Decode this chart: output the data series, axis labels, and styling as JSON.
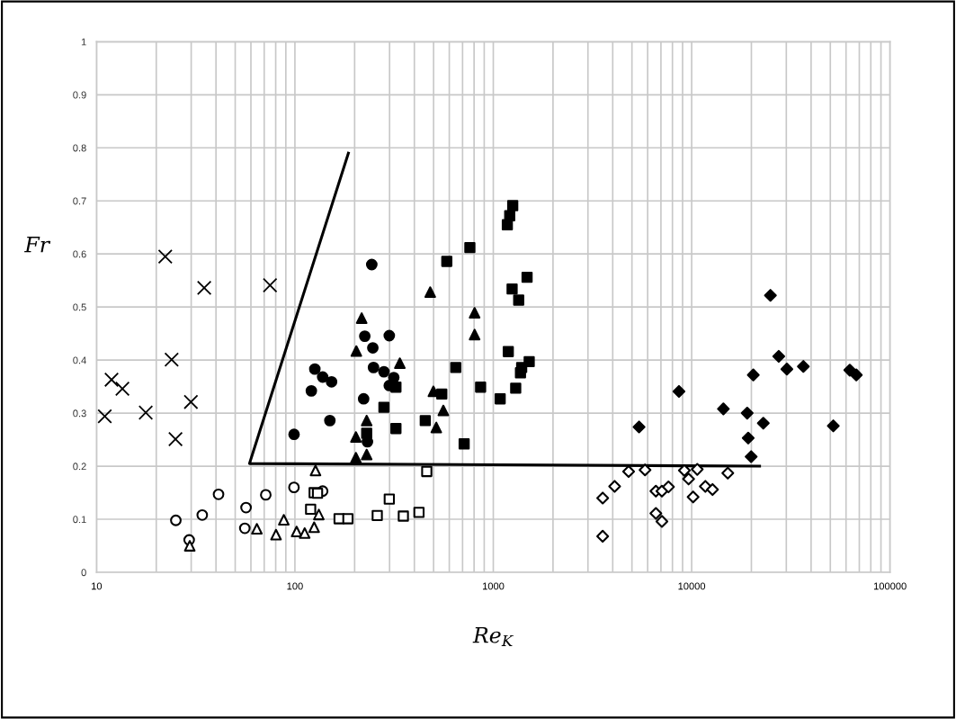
{
  "chart_data": {
    "type": "scatter",
    "xlabel": "Re$_{K}$",
    "ylabel": "Fr",
    "log": "x",
    "grid": true,
    "legend": false,
    "xlim": [
      10,
      100000
    ],
    "xticks": [
      10,
      100,
      1000,
      10000,
      100000
    ],
    "ylim": [
      0,
      1
    ],
    "yticks": [
      0,
      0.1,
      0.2,
      0.3,
      0.4,
      0.5,
      0.6,
      0.7,
      0.8,
      0.9,
      1
    ],
    "series": [
      {
        "marker": "cross",
        "color": "#000000",
        "x": [
          22.2,
          34.9,
          74.9,
          23.9,
          11.9,
          13.5,
          11.0,
          17.7,
          29.9,
          25.0
        ],
        "values": [
          0.595,
          0.536,
          0.541,
          0.401,
          0.363,
          0.346,
          0.294,
          0.301,
          0.321,
          0.251
        ]
      },
      {
        "marker": "circle-open",
        "color": "#000000",
        "x": [
          25.1,
          34.1,
          41.2,
          29.3,
          56.7,
          55.9,
          71.3,
          98.9,
          138
        ],
        "values": [
          0.098,
          0.108,
          0.147,
          0.061,
          0.122,
          0.083,
          0.146,
          0.16,
          0.153
        ]
      },
      {
        "marker": "triangle-open",
        "color": "#000000",
        "x": [
          127,
          29.5,
          64.3,
          87.9,
          80.3,
          102,
          112,
          125,
          132
        ],
        "values": [
          0.192,
          0.05,
          0.082,
          0.099,
          0.071,
          0.077,
          0.074,
          0.085,
          0.109
        ]
      },
      {
        "marker": "square-open",
        "color": "#000000",
        "x": [
          125,
          130,
          120,
          167,
          185,
          260,
          299,
          352,
          422,
          462
        ],
        "values": [
          0.15,
          0.149,
          0.119,
          0.101,
          0.101,
          0.107,
          0.138,
          0.106,
          0.113,
          0.19
        ]
      },
      {
        "marker": "circle",
        "color": "#000000",
        "x": [
          244,
          225,
          299,
          247,
          126,
          138,
          153,
          121,
          249,
          281,
          315,
          299,
          222,
          150,
          99,
          232
        ],
        "values": [
          0.58,
          0.445,
          0.446,
          0.423,
          0.383,
          0.368,
          0.359,
          0.342,
          0.386,
          0.378,
          0.367,
          0.352,
          0.327,
          0.286,
          0.26,
          0.246
        ]
      },
      {
        "marker": "triangle",
        "color": "#000000",
        "x": [
          217,
          204,
          338,
          230,
          203,
          230,
          203,
          481,
          805,
          805,
          499,
          560,
          516
        ],
        "values": [
          0.479,
          0.417,
          0.394,
          0.286,
          0.255,
          0.222,
          0.216,
          0.528,
          0.489,
          0.448,
          0.341,
          0.305,
          0.273
        ]
      },
      {
        "marker": "square",
        "color": "#000000",
        "x": [
          1253,
          1210,
          1177,
          762,
          583,
          1480,
          1244,
          1343,
          1190,
          1517,
          1390,
          1371,
          647,
          863,
          1297,
          1083,
          550,
          454,
          323,
          713,
          323,
          281,
          230
        ],
        "values": [
          0.691,
          0.672,
          0.655,
          0.612,
          0.586,
          0.556,
          0.534,
          0.513,
          0.416,
          0.397,
          0.386,
          0.376,
          0.386,
          0.349,
          0.347,
          0.327,
          0.336,
          0.286,
          0.271,
          0.242,
          0.349,
          0.311,
          0.262
        ]
      },
      {
        "marker": "diamond-open",
        "color": "#000000",
        "x": [
          3560,
          3560,
          4090,
          4810,
          5820,
          6600,
          7080,
          7640,
          6600,
          7080,
          9190,
          9650,
          10670,
          10170,
          11720,
          12740,
          15210
        ],
        "values": [
          0.14,
          0.068,
          0.162,
          0.19,
          0.193,
          0.153,
          0.153,
          0.161,
          0.111,
          0.096,
          0.192,
          0.176,
          0.194,
          0.142,
          0.162,
          0.156,
          0.187
        ]
      },
      {
        "marker": "diamond",
        "color": "#000000",
        "x": [
          24950,
          5430,
          8630,
          14450,
          19050,
          20450,
          22970,
          19280,
          19950,
          27480,
          30200,
          36560,
          51760,
          62670,
          67610
        ],
        "values": [
          0.522,
          0.274,
          0.341,
          0.308,
          0.3,
          0.372,
          0.281,
          0.253,
          0.218,
          0.407,
          0.383,
          0.388,
          0.276,
          0.381,
          0.372
        ]
      },
      {
        "type": "line",
        "marker": "none",
        "color": "#000000",
        "x": [
          186,
          59,
          22000
        ],
        "values": [
          0.79,
          0.205,
          0.2
        ]
      }
    ]
  }
}
